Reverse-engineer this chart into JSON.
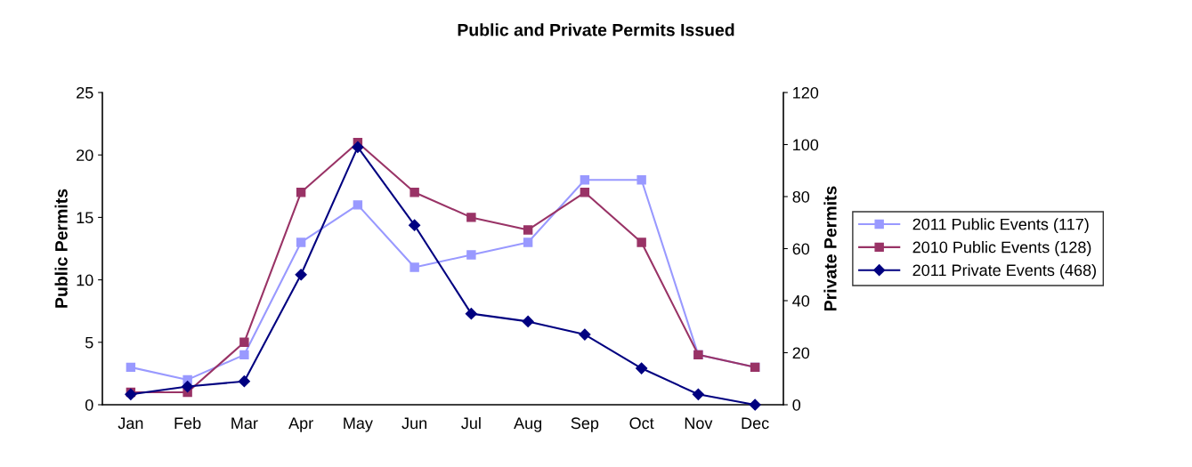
{
  "chart_data": {
    "type": "line",
    "title": "Public and Private Permits Issued",
    "ylabel": "Public Permits",
    "y2label": "Private Permits",
    "categories": [
      "Jan",
      "Feb",
      "Mar",
      "Apr",
      "May",
      "Jun",
      "Jul",
      "Aug",
      "Sep",
      "Oct",
      "Nov",
      "Dec"
    ],
    "series": [
      {
        "name": "2011 Public Events (117)",
        "color": "#9999ff",
        "marker": "square",
        "values": [
          3,
          2,
          4,
          13,
          16,
          11,
          12,
          13,
          18,
          18,
          4,
          3
        ]
      },
      {
        "name": "2010 Public Events (128)",
        "color": "#993366",
        "marker": "square",
        "values": [
          1,
          1,
          5,
          17,
          21,
          17,
          15,
          14,
          17,
          13,
          4,
          3
        ]
      },
      {
        "name": "2011 Private Events (468)",
        "color": "#000080",
        "marker": "diamond",
        "axis": "y2",
        "values": [
          4,
          7,
          9,
          50,
          99,
          69,
          35,
          32,
          27,
          14,
          4,
          0
        ]
      }
    ],
    "ylim": [
      0,
      25
    ],
    "yticks": [
      0,
      5,
      10,
      15,
      20,
      25
    ],
    "y2lim": [
      0,
      120
    ],
    "y2ticks": [
      0,
      20,
      40,
      60,
      80,
      100,
      120
    ],
    "grid": false,
    "legend": "right",
    "line_style": "solid"
  }
}
